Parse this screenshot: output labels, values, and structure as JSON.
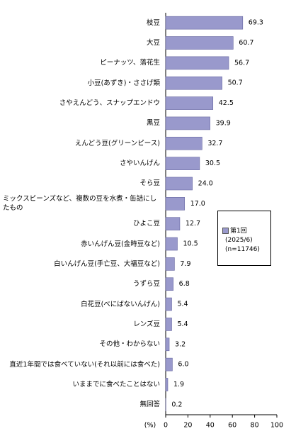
{
  "chart_data": {
    "type": "hbar",
    "categories": [
      "枝豆",
      "大豆",
      "ピーナッツ、落花生",
      "小豆(あずき)・ささげ類",
      "さやえんどう、スナップエンドウ",
      "黒豆",
      "えんどう豆(グリーンピース)",
      "さやいんげん",
      "そら豆",
      "ミックスビーンズなど、複数の豆を水煮・缶詰にしたもの",
      "ひよこ豆",
      "赤いんげん豆(金時豆など)",
      "白いんげん豆(手亡豆、大福豆など)",
      "うずら豆",
      "白花豆(べにばないんげん)",
      "レンズ豆",
      "その他・わからない",
      "直近1年間では食べていない(それ以前には食べた)",
      "いままでに食べたことはない",
      "無回答"
    ],
    "series": [
      {
        "name": "第1回",
        "color": "#9999cc",
        "values": [
          69.3,
          60.7,
          56.7,
          50.7,
          42.5,
          39.9,
          32.7,
          30.5,
          24.0,
          17.0,
          12.7,
          10.5,
          7.9,
          6.8,
          5.4,
          5.4,
          3.2,
          6.0,
          1.9,
          0.2
        ],
        "value_labels": [
          "69.3",
          "60.7",
          "56.7",
          "50.7",
          "42.5",
          "39.9",
          "32.7",
          "30.5",
          "24.0",
          "17.0",
          "12.7",
          "10.5",
          "7.9",
          "6.8",
          "5.4",
          "5.4",
          "3.2",
          "6.0",
          "1.9",
          "0.2"
        ]
      }
    ],
    "legend_notes": [
      "(2025/6)",
      "(n=11746)"
    ],
    "xlabel": "(%)",
    "xlim": [
      0,
      100
    ],
    "xticks": [
      0,
      20,
      40,
      60,
      80,
      100
    ]
  }
}
